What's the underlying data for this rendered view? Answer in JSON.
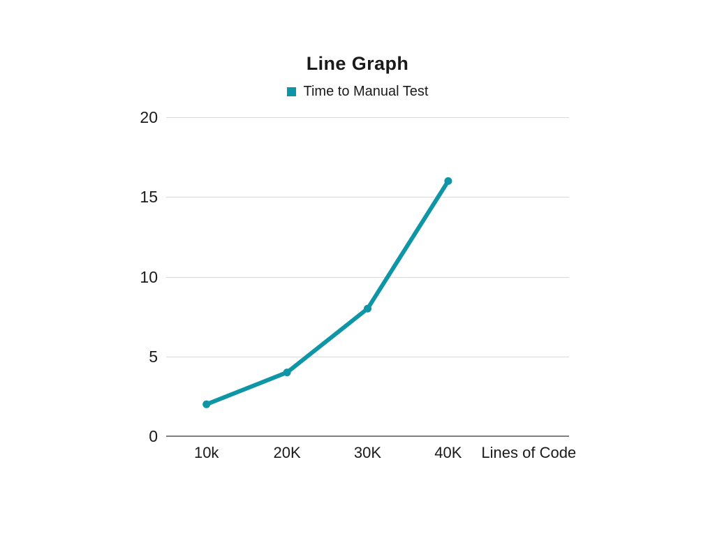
{
  "chart": {
    "title": "Line Graph",
    "legend_label": "Time to Manual Test"
  },
  "colors": {
    "series": "#0e96a6",
    "gridline": "#d8d8d8",
    "axis_line": "#7f7f7f",
    "text": "#1a1a1a",
    "background": "#ffffff"
  },
  "chart_data": {
    "type": "line",
    "title": "Line Graph",
    "categories": [
      "10k",
      "20K",
      "30K",
      "40K"
    ],
    "series": [
      {
        "name": "Time to Manual Test",
        "values": [
          2,
          4,
          8,
          16
        ]
      }
    ],
    "x_axis_title": "Lines of Code",
    "y_ticks": [
      0,
      5,
      10,
      15,
      20
    ],
    "ylim": [
      0,
      20
    ],
    "grid": true,
    "legend_position": "top",
    "marker": "circle"
  }
}
